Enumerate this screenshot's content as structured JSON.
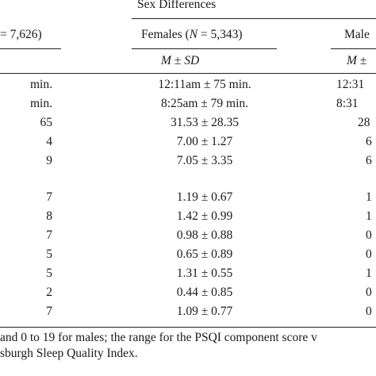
{
  "header": {
    "group_title": "Sex Differences",
    "total_frag": "= 7,626)",
    "females_label": "Females (",
    "females_n_symbol": "N",
    "females_n_value": " = 5,343)",
    "males_frag": "Male",
    "stat_col1": "M ± SD",
    "stat_col2": "M ± ",
    "stat_col2_tail": "",
    "stat_females_M": "M",
    "stat_females_pm": " ± ",
    "stat_females_SD": "SD"
  },
  "rows": [
    {
      "left": "min.",
      "female": "12:11am ± 75 min.",
      "male": "12:31"
    },
    {
      "left": "min.",
      "female": "8:25am ± 79 min.",
      "male": "8:31"
    },
    {
      "left": "65",
      "female": "31.53 ± 28.35",
      "male": "28"
    },
    {
      "left": "4",
      "female": "7.00 ± 1.27",
      "male": "6"
    },
    {
      "left": "9",
      "female": "7.05 ± 3.35",
      "male": "6"
    },
    {
      "left": "7",
      "female": "1.19 ± 0.67",
      "male": "1"
    },
    {
      "left": "8",
      "female": "1.42 ± 0.99",
      "male": "1"
    },
    {
      "left": "7",
      "female": "0.98 ± 0.88",
      "male": "0"
    },
    {
      "left": "5",
      "female": "0.65 ± 0.89",
      "male": "0"
    },
    {
      "left": "5",
      "female": "1.31 ± 0.55",
      "male": "1"
    },
    {
      "left": "2",
      "female": "0.44 ± 0.85",
      "male": "0"
    },
    {
      "left": "7",
      "female": "1.09 ± 0.77",
      "male": "0"
    }
  ],
  "footnote": {
    "line1": "and 0 to 19 for males; the range for the PSQI component score v",
    "line2": "sburgh Sleep Quality Index."
  }
}
